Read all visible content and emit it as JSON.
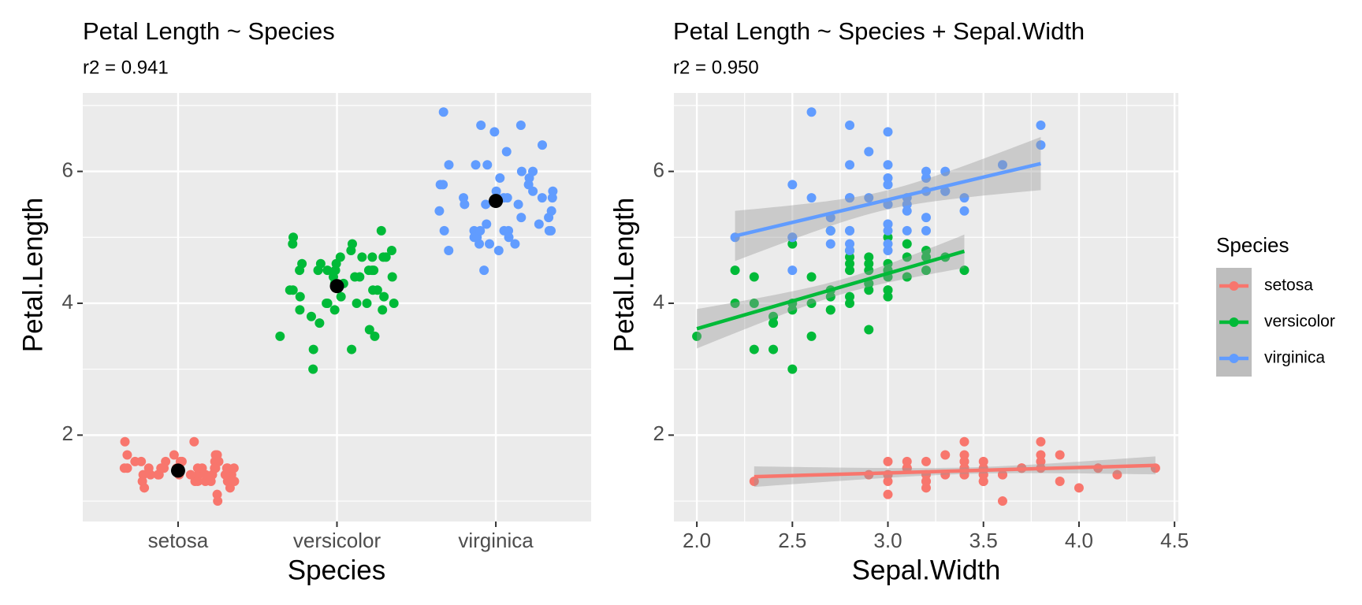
{
  "chart_data": [
    {
      "type": "strip",
      "title": "Petal Length ~ Species",
      "subtitle": "r2 = 0.941",
      "x_label": "Species",
      "y_label": "Petal.Length",
      "categories": [
        "setosa",
        "versicolor",
        "virginica"
      ],
      "series": [
        {
          "color": "#F8766D",
          "values": [
            1.4,
            1.4,
            1.3,
            1.5,
            1.4,
            1.7,
            1.4,
            1.5,
            1.4,
            1.5,
            1.5,
            1.6,
            1.4,
            1.1,
            1.2,
            1.5,
            1.3,
            1.4,
            1.7,
            1.5,
            1.7,
            1.5,
            1.0,
            1.7,
            1.9,
            1.6,
            1.6,
            1.5,
            1.4,
            1.6,
            1.6,
            1.5,
            1.5,
            1.4,
            1.5,
            1.2,
            1.3,
            1.4,
            1.3,
            1.5,
            1.3,
            1.3,
            1.3,
            1.6,
            1.9,
            1.4,
            1.6,
            1.4,
            1.5,
            1.4
          ]
        },
        {
          "color": "#00BA38",
          "values": [
            4.7,
            4.5,
            4.9,
            4.0,
            4.6,
            4.5,
            4.7,
            3.3,
            4.6,
            3.9,
            3.5,
            4.2,
            4.0,
            4.7,
            3.6,
            4.4,
            4.5,
            4.1,
            4.5,
            3.9,
            4.8,
            4.0,
            4.9,
            4.7,
            4.3,
            4.4,
            4.8,
            5.0,
            4.5,
            3.5,
            3.8,
            3.7,
            3.9,
            5.1,
            4.5,
            4.5,
            4.7,
            4.4,
            4.1,
            4.0,
            4.4,
            4.6,
            4.0,
            3.3,
            4.2,
            4.2,
            4.2,
            4.3,
            3.0,
            4.1
          ]
        },
        {
          "color": "#619CFF",
          "values": [
            6.0,
            5.1,
            5.9,
            5.6,
            5.8,
            6.6,
            4.5,
            6.3,
            5.8,
            6.1,
            5.1,
            5.3,
            5.5,
            5.0,
            5.1,
            5.3,
            5.5,
            6.7,
            6.9,
            5.0,
            5.7,
            4.9,
            6.7,
            4.9,
            5.7,
            6.0,
            4.8,
            4.9,
            5.6,
            5.8,
            6.1,
            6.4,
            5.6,
            5.1,
            5.6,
            6.1,
            5.6,
            5.5,
            4.8,
            5.4,
            5.6,
            5.1,
            5.1,
            5.9,
            5.7,
            5.2,
            5.0,
            5.2,
            5.4,
            5.1
          ]
        }
      ],
      "means": [
        1.462,
        4.26,
        5.552
      ],
      "mean_color": "#000000",
      "ylim": [
        0.69,
        7.19
      ],
      "yticks": [
        2,
        4,
        6
      ],
      "yminor": [
        1,
        3,
        5,
        7
      ],
      "grid": true
    },
    {
      "type": "scatter",
      "title": "Petal Length ~ Species + Sepal.Width",
      "subtitle": "r2 = 0.950",
      "x_label": "Sepal.Width",
      "y_label": "Petal.Length",
      "legend_title": "Species",
      "smooth": "lm",
      "series": [
        {
          "name": "setosa",
          "color": "#F8766D",
          "x": [
            3.5,
            3.0,
            3.2,
            3.1,
            3.6,
            3.9,
            3.4,
            3.4,
            2.9,
            3.1,
            3.7,
            3.4,
            3.0,
            3.0,
            4.0,
            4.4,
            3.9,
            3.5,
            3.8,
            3.8,
            3.4,
            3.7,
            3.6,
            3.3,
            3.4,
            3.0,
            3.4,
            3.5,
            3.4,
            3.2,
            3.1,
            3.4,
            4.1,
            4.2,
            3.1,
            3.2,
            3.5,
            3.6,
            3.0,
            3.4,
            3.5,
            2.3,
            3.2,
            3.5,
            3.8,
            3.0,
            3.8,
            3.2,
            3.7,
            3.3
          ],
          "values": [
            1.4,
            1.4,
            1.3,
            1.5,
            1.4,
            1.7,
            1.4,
            1.5,
            1.4,
            1.5,
            1.5,
            1.6,
            1.4,
            1.1,
            1.2,
            1.5,
            1.3,
            1.4,
            1.7,
            1.5,
            1.7,
            1.5,
            1.0,
            1.7,
            1.9,
            1.6,
            1.6,
            1.5,
            1.4,
            1.6,
            1.6,
            1.5,
            1.5,
            1.4,
            1.5,
            1.2,
            1.3,
            1.4,
            1.3,
            1.5,
            1.3,
            1.3,
            1.3,
            1.6,
            1.9,
            1.4,
            1.6,
            1.4,
            1.5,
            1.4
          ]
        },
        {
          "name": "versicolor",
          "color": "#00BA38",
          "x": [
            3.2,
            3.2,
            3.1,
            2.3,
            2.8,
            2.8,
            3.3,
            2.4,
            2.9,
            2.7,
            2.0,
            3.0,
            2.2,
            2.9,
            2.9,
            3.1,
            3.0,
            2.7,
            2.2,
            2.5,
            3.2,
            2.8,
            2.5,
            2.8,
            2.9,
            3.0,
            2.8,
            3.0,
            2.9,
            2.6,
            2.4,
            2.4,
            2.7,
            2.7,
            3.0,
            3.4,
            3.1,
            2.3,
            3.0,
            2.5,
            2.6,
            3.0,
            2.6,
            2.3,
            2.7,
            3.0,
            2.9,
            2.9,
            2.5,
            2.8
          ],
          "values": [
            4.7,
            4.5,
            4.9,
            4.0,
            4.6,
            4.5,
            4.7,
            3.3,
            4.6,
            3.9,
            3.5,
            4.2,
            4.0,
            4.7,
            3.6,
            4.4,
            4.5,
            4.1,
            4.5,
            3.9,
            4.8,
            4.0,
            4.9,
            4.7,
            4.3,
            4.4,
            4.8,
            5.0,
            4.5,
            3.5,
            3.8,
            3.7,
            3.9,
            5.1,
            4.5,
            4.5,
            4.7,
            4.4,
            4.1,
            4.0,
            4.4,
            4.6,
            4.0,
            3.3,
            4.2,
            4.2,
            4.2,
            4.3,
            3.0,
            4.1
          ]
        },
        {
          "name": "virginica",
          "color": "#619CFF",
          "x": [
            3.3,
            2.7,
            3.0,
            2.9,
            3.0,
            3.0,
            2.5,
            2.9,
            2.5,
            3.6,
            3.2,
            2.7,
            3.0,
            2.5,
            2.8,
            3.2,
            3.0,
            3.8,
            2.6,
            2.2,
            3.2,
            2.8,
            2.8,
            2.7,
            3.3,
            3.2,
            2.8,
            3.0,
            2.8,
            3.0,
            2.8,
            3.8,
            2.8,
            2.8,
            2.6,
            3.0,
            3.4,
            3.1,
            3.0,
            3.1,
            3.1,
            3.1,
            2.7,
            3.2,
            3.3,
            3.0,
            2.5,
            3.0,
            3.4,
            3.0
          ],
          "values": [
            6.0,
            5.1,
            5.9,
            5.6,
            5.8,
            6.6,
            4.5,
            6.3,
            5.8,
            6.1,
            5.1,
            5.3,
            5.5,
            5.0,
            5.1,
            5.3,
            5.5,
            6.7,
            6.9,
            5.0,
            5.7,
            4.9,
            6.7,
            4.9,
            5.7,
            6.0,
            4.8,
            4.9,
            5.6,
            5.8,
            6.1,
            6.4,
            5.6,
            5.1,
            5.6,
            6.1,
            5.6,
            5.5,
            4.8,
            5.4,
            5.6,
            5.1,
            5.1,
            5.9,
            5.7,
            5.2,
            5.0,
            5.2,
            5.4,
            5.1
          ]
        }
      ],
      "xlim": [
        1.88,
        4.52
      ],
      "xticks": [
        {
          "value": 2,
          "label": "2.0"
        },
        2.5,
        {
          "value": 3,
          "label": "3.0"
        },
        3.5,
        {
          "value": 4,
          "label": "4.0"
        },
        4.5
      ],
      "xminor": [
        2.25,
        2.75,
        3.25,
        3.75,
        4.25
      ],
      "ylim": [
        0.69,
        7.19
      ],
      "yticks": [
        2,
        4,
        6
      ],
      "yminor": [
        1,
        3,
        5,
        7
      ],
      "grid": true
    }
  ]
}
